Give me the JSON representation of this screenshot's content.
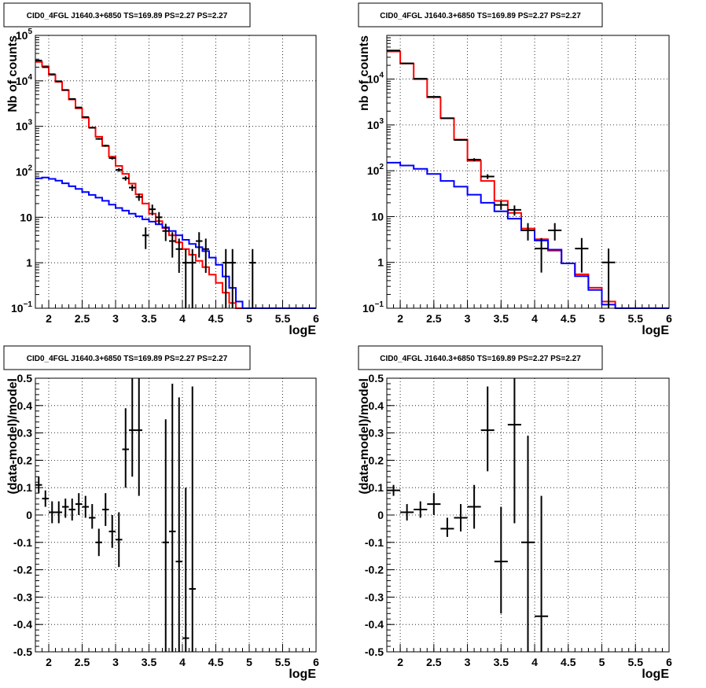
{
  "colors": {
    "data": "#000000",
    "model": "#ff0000",
    "background": "#0000ff",
    "grid": "#000000",
    "frame": "#000000"
  },
  "chart_data": [
    {
      "type": "step-line",
      "title": "CID0_4FGL J1640.3+6850 TS=169.89 PS=2.27 PS=2.27",
      "xlabel": "logE",
      "ylabel": "Nb of counts",
      "xlim": [
        1.8,
        6.0
      ],
      "ylim": [
        0.1,
        100000
      ],
      "yscale": "log",
      "grid": true,
      "xticks": [
        "2",
        "2.5",
        "3",
        "3.5",
        "4",
        "4.5",
        "5",
        "5.5",
        "6"
      ],
      "yticks": [
        {
          "value": 0.1,
          "base": "10",
          "exp": "−1"
        },
        {
          "value": 1,
          "label": "1"
        },
        {
          "value": 10,
          "label": "10"
        },
        {
          "value": 100,
          "base": "10",
          "exp": "2"
        },
        {
          "value": 1000,
          "base": "10",
          "exp": "3"
        },
        {
          "value": 10000,
          "base": "10",
          "exp": "4"
        },
        {
          "value": 100000,
          "base": "10",
          "exp": "5"
        }
      ],
      "bin_edges": [
        1.8,
        1.9,
        2.0,
        2.1,
        2.2,
        2.3,
        2.4,
        2.5,
        2.6,
        2.7,
        2.8,
        2.9,
        3.0,
        3.1,
        3.2,
        3.3,
        3.4,
        3.5,
        3.6,
        3.7,
        3.8,
        3.9,
        4.0,
        4.1,
        4.2,
        4.3,
        4.4,
        4.5,
        4.6,
        4.7,
        4.8,
        4.9,
        5.0,
        5.1,
        5.2,
        5.3,
        5.4,
        5.5,
        5.6,
        5.7,
        5.8,
        5.9,
        6.0
      ],
      "series": [
        {
          "name": "model",
          "values": [
            26000,
            21000,
            13500,
            9500,
            6200,
            3900,
            2500,
            1550,
            940,
            590,
            370,
            215,
            135,
            90,
            55,
            32,
            20,
            12,
            8.2,
            5.8,
            4.0,
            2.8,
            2.0,
            1.5,
            1.1,
            0.8,
            0.55,
            0.36,
            0.22,
            0.13,
            0.1,
            0.1,
            0.1,
            0.1,
            0.1,
            0.1,
            0.1,
            0.1,
            0.1,
            0.1,
            0.1,
            0.1
          ]
        },
        {
          "name": "background",
          "values": [
            72,
            75,
            70,
            64,
            56,
            48,
            42,
            36,
            31,
            27,
            23,
            19,
            16,
            14,
            12,
            10.5,
            9,
            8,
            7,
            6,
            5,
            4,
            3.2,
            2.6,
            2.2,
            1.8,
            1.3,
            0.9,
            0.5,
            0.28,
            0.14,
            0.1,
            0.1,
            0.1,
            0.1,
            0.1,
            0.1,
            0.1,
            0.1,
            0.1,
            0.1,
            0.1
          ]
        },
        {
          "name": "data",
          "points": [
            {
              "x": 1.85,
              "y": 28000,
              "ylo": 27800,
              "yhi": 28200
            },
            {
              "x": 1.95,
              "y": 20000,
              "ylo": 19800,
              "yhi": 20200
            },
            {
              "x": 2.05,
              "y": 14000,
              "ylo": 13880,
              "yhi": 14120
            },
            {
              "x": 2.15,
              "y": 9800,
              "ylo": 9700,
              "yhi": 9900
            },
            {
              "x": 2.25,
              "y": 6300,
              "ylo": 6220,
              "yhi": 6380
            },
            {
              "x": 2.35,
              "y": 4000,
              "ylo": 3940,
              "yhi": 4060
            },
            {
              "x": 2.45,
              "y": 2600,
              "ylo": 2550,
              "yhi": 2650
            },
            {
              "x": 2.55,
              "y": 1600,
              "ylo": 1560,
              "yhi": 1640
            },
            {
              "x": 2.65,
              "y": 930,
              "ylo": 900,
              "yhi": 960
            },
            {
              "x": 2.75,
              "y": 530,
              "ylo": 507,
              "yhi": 553
            },
            {
              "x": 2.85,
              "y": 375,
              "ylo": 356,
              "yhi": 394
            },
            {
              "x": 2.95,
              "y": 200,
              "ylo": 186,
              "yhi": 214
            },
            {
              "x": 3.05,
              "y": 110,
              "ylo": 100,
              "yhi": 120
            },
            {
              "x": 3.15,
              "y": 72,
              "ylo": 64,
              "yhi": 80
            },
            {
              "x": 3.25,
              "y": 45,
              "ylo": 38,
              "yhi": 52
            },
            {
              "x": 3.35,
              "y": 28,
              "ylo": 23,
              "yhi": 33
            },
            {
              "x": 3.45,
              "y": 4,
              "ylo": 2,
              "yhi": 6
            },
            {
              "x": 3.55,
              "y": 15,
              "ylo": 11,
              "yhi": 19
            },
            {
              "x": 3.65,
              "y": 10,
              "ylo": 7,
              "yhi": 13
            },
            {
              "x": 3.75,
              "y": 5,
              "ylo": 3,
              "yhi": 7.2
            },
            {
              "x": 3.85,
              "y": 3,
              "ylo": 1.3,
              "yhi": 4.7
            },
            {
              "x": 3.95,
              "y": 2,
              "ylo": 0.6,
              "yhi": 3.4
            },
            {
              "x": 4.05,
              "y": 1,
              "ylo": 0.1,
              "yhi": 2
            },
            {
              "x": 4.15,
              "y": 1,
              "ylo": 0.1,
              "yhi": 2
            },
            {
              "x": 4.25,
              "y": 3,
              "ylo": 1.3,
              "yhi": 4.7
            },
            {
              "x": 4.35,
              "y": 2,
              "ylo": 0.6,
              "yhi": 3.4
            },
            {
              "x": 4.65,
              "y": 1,
              "ylo": 0.1,
              "yhi": 2
            },
            {
              "x": 4.75,
              "y": 1,
              "ylo": 0.1,
              "yhi": 2
            },
            {
              "x": 5.05,
              "y": 1,
              "ylo": 0.1,
              "yhi": 2
            }
          ]
        }
      ]
    },
    {
      "type": "step-line",
      "title": "CID0_4FGL J1640.3+6850 TS=169.89 PS=2.27 PS=2.27",
      "xlabel": "logE",
      "ylabel": "nb of counts",
      "xlim": [
        1.8,
        6.0
      ],
      "ylim": [
        0.1,
        90000
      ],
      "yscale": "log",
      "grid": true,
      "xticks": [
        "2",
        "2.5",
        "3",
        "3.5",
        "4",
        "4.5",
        "5",
        "5.5",
        "6"
      ],
      "yticks": [
        {
          "value": 0.1,
          "base": "10",
          "exp": "−1"
        },
        {
          "value": 1,
          "label": "1"
        },
        {
          "value": 10,
          "label": "10"
        },
        {
          "value": 100,
          "base": "10",
          "exp": "2"
        },
        {
          "value": 1000,
          "base": "10",
          "exp": "3"
        },
        {
          "value": 10000,
          "base": "10",
          "exp": "4"
        }
      ],
      "bin_edges": [
        1.8,
        2.0,
        2.2,
        2.4,
        2.6,
        2.8,
        3.0,
        3.2,
        3.4,
        3.6,
        3.8,
        4.0,
        4.2,
        4.4,
        4.6,
        4.8,
        5.0,
        5.2,
        5.4,
        5.6,
        5.8,
        6.0
      ],
      "series": [
        {
          "name": "model",
          "values": [
            40000,
            22000,
            10000,
            4000,
            1400,
            480,
            165,
            60,
            22,
            12,
            5.5,
            3.2,
            1.8,
            0.95,
            0.55,
            0.28,
            0.14,
            0.1,
            0.1,
            0.1,
            0.1
          ]
        },
        {
          "name": "background",
          "values": [
            150,
            130,
            110,
            85,
            60,
            45,
            30,
            20,
            13,
            9,
            5,
            3,
            1.9,
            0.95,
            0.5,
            0.25,
            0.12,
            0.1,
            0.1,
            0.1,
            0.1
          ]
        },
        {
          "name": "data",
          "points": [
            {
              "x": 1.9,
              "y": 42000,
              "ylo": 41500,
              "yhi": 42500
            },
            {
              "x": 2.1,
              "y": 22000,
              "ylo": 21700,
              "yhi": 22300
            },
            {
              "x": 2.3,
              "y": 10200,
              "ylo": 10000,
              "yhi": 10400
            },
            {
              "x": 2.5,
              "y": 4100,
              "ylo": 4000,
              "yhi": 4200
            },
            {
              "x": 2.7,
              "y": 1400,
              "ylo": 1360,
              "yhi": 1440
            },
            {
              "x": 2.9,
              "y": 470,
              "ylo": 450,
              "yhi": 490
            },
            {
              "x": 3.1,
              "y": 175,
              "ylo": 162,
              "yhi": 188
            },
            {
              "x": 3.3,
              "y": 75,
              "ylo": 66,
              "yhi": 84
            },
            {
              "x": 3.5,
              "y": 18,
              "ylo": 14,
              "yhi": 22
            },
            {
              "x": 3.7,
              "y": 14,
              "ylo": 10.5,
              "yhi": 17.5
            },
            {
              "x": 3.9,
              "y": 5,
              "ylo": 3,
              "yhi": 7.2
            },
            {
              "x": 4.1,
              "y": 2,
              "ylo": 0.6,
              "yhi": 3.4
            },
            {
              "x": 4.3,
              "y": 5,
              "ylo": 3,
              "yhi": 7.2
            },
            {
              "x": 4.7,
              "y": 2,
              "ylo": 0.6,
              "yhi": 3.4
            },
            {
              "x": 5.1,
              "y": 1,
              "ylo": 0.1,
              "yhi": 2
            }
          ]
        }
      ]
    },
    {
      "type": "scatter",
      "title": "CID0_4FGL J1640.3+6850 TS=169.89 PS=2.27 PS=2.27",
      "xlabel": "logE",
      "ylabel": "(data-model)/model",
      "xlim": [
        1.8,
        6.0
      ],
      "ylim": [
        -0.5,
        0.5
      ],
      "yscale": "linear",
      "grid": true,
      "xticks": [
        "2",
        "2.5",
        "3",
        "3.5",
        "4",
        "4.5",
        "5",
        "5.5",
        "6"
      ],
      "yticks": [
        "-0.5",
        "-0.4",
        "-0.3",
        "-0.2",
        "-0.1",
        "0",
        "0.1",
        "0.2",
        "0.3",
        "0.4",
        "0.5"
      ],
      "series": [
        {
          "name": "residuals",
          "points": [
            {
              "x": 1.85,
              "y": 0.11,
              "ylo": 0.08,
              "yhi": 0.14
            },
            {
              "x": 1.95,
              "y": 0.06,
              "ylo": 0.03,
              "yhi": 0.09
            },
            {
              "x": 2.05,
              "y": 0.01,
              "ylo": -0.03,
              "yhi": 0.05
            },
            {
              "x": 2.15,
              "y": 0.01,
              "ylo": -0.03,
              "yhi": 0.05
            },
            {
              "x": 2.25,
              "y": 0.03,
              "ylo": -0.01,
              "yhi": 0.06
            },
            {
              "x": 2.35,
              "y": 0.02,
              "ylo": -0.02,
              "yhi": 0.06
            },
            {
              "x": 2.45,
              "y": 0.04,
              "ylo": 0.0,
              "yhi": 0.08
            },
            {
              "x": 2.55,
              "y": 0.03,
              "ylo": -0.01,
              "yhi": 0.07
            },
            {
              "x": 2.65,
              "y": -0.01,
              "ylo": -0.05,
              "yhi": 0.04
            },
            {
              "x": 2.75,
              "y": -0.1,
              "ylo": -0.15,
              "yhi": -0.05
            },
            {
              "x": 2.85,
              "y": 0.02,
              "ylo": -0.04,
              "yhi": 0.08
            },
            {
              "x": 2.95,
              "y": -0.06,
              "ylo": -0.12,
              "yhi": 0.0
            },
            {
              "x": 3.05,
              "y": -0.09,
              "ylo": -0.19,
              "yhi": 0.01
            },
            {
              "x": 3.15,
              "y": 0.24,
              "ylo": 0.1,
              "yhi": 0.39
            },
            {
              "x": 3.25,
              "y": 0.31,
              "ylo": 0.14,
              "yhi": 0.5
            },
            {
              "x": 3.35,
              "y": 0.31,
              "ylo": 0.07,
              "yhi": 0.5
            },
            {
              "x": 3.75,
              "y": -0.1,
              "ylo": -0.5,
              "yhi": 0.35
            },
            {
              "x": 3.85,
              "y": -0.06,
              "ylo": -0.5,
              "yhi": 0.48
            },
            {
              "x": 3.95,
              "y": -0.17,
              "ylo": -0.5,
              "yhi": 0.43
            },
            {
              "x": 4.05,
              "y": -0.45,
              "ylo": -0.5,
              "yhi": 0.1
            },
            {
              "x": 4.15,
              "y": -0.27,
              "ylo": -0.5,
              "yhi": 0.47
            }
          ]
        }
      ]
    },
    {
      "type": "scatter",
      "title": "CID0_4FGL J1640.3+6850 TS=169.89 PS=2.27 PS=2.27",
      "xlabel": "logE",
      "ylabel": "(data-model)/model",
      "xlim": [
        1.8,
        6.0
      ],
      "ylim": [
        -0.5,
        0.5
      ],
      "yscale": "linear",
      "grid": true,
      "xticks": [
        "2",
        "2.5",
        "3",
        "3.5",
        "4",
        "4.5",
        "5",
        "5.5",
        "6"
      ],
      "yticks": [
        "-0.5",
        "-0.4",
        "-0.3",
        "-0.2",
        "-0.1",
        "0",
        "0.1",
        "0.2",
        "0.3",
        "0.4",
        "0.5"
      ],
      "series": [
        {
          "name": "residuals",
          "points": [
            {
              "x": 1.9,
              "y": 0.09,
              "ylo": 0.07,
              "yhi": 0.11
            },
            {
              "x": 2.1,
              "y": 0.01,
              "ylo": -0.02,
              "yhi": 0.04
            },
            {
              "x": 2.3,
              "y": 0.02,
              "ylo": -0.01,
              "yhi": 0.05
            },
            {
              "x": 2.5,
              "y": 0.04,
              "ylo": 0.0,
              "yhi": 0.08
            },
            {
              "x": 2.7,
              "y": -0.05,
              "ylo": -0.08,
              "yhi": -0.01
            },
            {
              "x": 2.9,
              "y": -0.01,
              "ylo": -0.06,
              "yhi": 0.04
            },
            {
              "x": 3.1,
              "y": 0.03,
              "ylo": -0.05,
              "yhi": 0.11
            },
            {
              "x": 3.3,
              "y": 0.31,
              "ylo": 0.16,
              "yhi": 0.47
            },
            {
              "x": 3.5,
              "y": -0.17,
              "ylo": -0.36,
              "yhi": 0.03
            },
            {
              "x": 3.7,
              "y": 0.33,
              "ylo": -0.03,
              "yhi": 0.5
            },
            {
              "x": 3.9,
              "y": -0.1,
              "ylo": -0.5,
              "yhi": 0.29
            },
            {
              "x": 4.1,
              "y": -0.37,
              "ylo": -0.5,
              "yhi": 0.07
            }
          ]
        }
      ]
    }
  ]
}
